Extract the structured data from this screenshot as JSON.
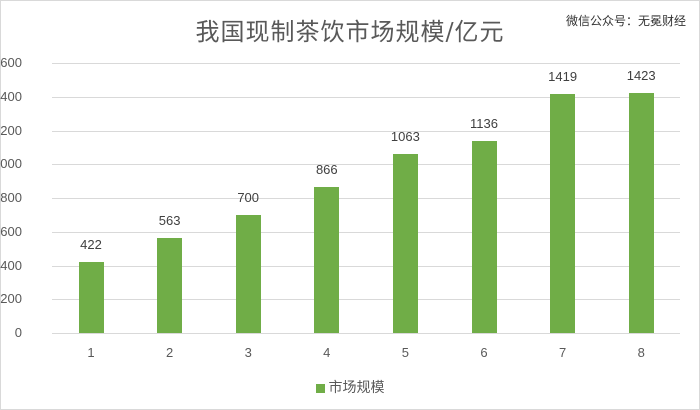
{
  "chart_data": {
    "type": "bar",
    "title": "我国现制茶饮市场规模/亿元",
    "categories": [
      "1",
      "2",
      "3",
      "4",
      "5",
      "6",
      "7",
      "8"
    ],
    "series": [
      {
        "name": "市场规模",
        "values": [
          422,
          563,
          700,
          866,
          1063,
          1136,
          1419,
          1423
        ],
        "color": "#70ad47"
      }
    ],
    "xlabel": "",
    "ylabel": "",
    "ylim": [
      0,
      1600
    ],
    "yticks": [
      0,
      200,
      400,
      600,
      800,
      1000,
      1200,
      1400,
      1600
    ],
    "grid": true,
    "legend_position": "bottom"
  },
  "watermark": "微信公众号：无冕财经"
}
